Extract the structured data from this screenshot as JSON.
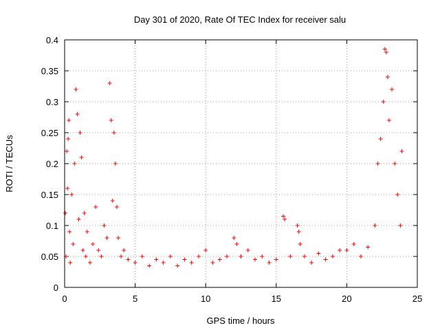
{
  "chart_data": {
    "type": "scatter",
    "title": "Day 301 of 2020, Rate Of TEC Index for receiver salu",
    "xlabel": "GPS time / hours",
    "ylabel": "ROTI / TECUs",
    "xlim": [
      0,
      25
    ],
    "ylim": [
      0,
      0.4
    ],
    "xticks": [
      0,
      5,
      10,
      15,
      20,
      25
    ],
    "yticks": [
      0,
      0.05,
      0.1,
      0.15,
      0.2,
      0.25,
      0.3,
      0.35,
      0.4
    ],
    "grid": true,
    "marker": "+",
    "color": "#ff0000",
    "series": [
      {
        "x": [
          0.05,
          0.1,
          0.15,
          0.2,
          0.25,
          0.3,
          0.35,
          0.4,
          0.5,
          0.6,
          0.7,
          0.8,
          0.9,
          1.0,
          1.1,
          1.2,
          1.3,
          1.4,
          1.5,
          1.6,
          1.8,
          2.0,
          2.2,
          2.4,
          2.6,
          2.8,
          3.0,
          3.2,
          3.3,
          3.4,
          3.5,
          3.6,
          3.7,
          3.8,
          4.0,
          4.2,
          4.5,
          5.0,
          5.5,
          6.0,
          6.5,
          7.0,
          7.5,
          8.0,
          8.5,
          9.0,
          9.5,
          10.0,
          10.5,
          11.0,
          11.5,
          12.0,
          12.2,
          12.5,
          13.0,
          13.5,
          14.0,
          14.5,
          15.0,
          15.5,
          15.6,
          16.0,
          16.5,
          16.6,
          16.7,
          17.0,
          17.5,
          18.0,
          18.5,
          19.0,
          19.5,
          20.0,
          20.5,
          21.0,
          21.5,
          22.0,
          22.2,
          22.4,
          22.6,
          22.7,
          22.8,
          22.9,
          23.0,
          23.2,
          23.4,
          23.6,
          23.8,
          23.9
        ],
        "y": [
          0.12,
          0.05,
          0.22,
          0.16,
          0.24,
          0.27,
          0.09,
          0.04,
          0.15,
          0.07,
          0.2,
          0.32,
          0.28,
          0.11,
          0.25,
          0.21,
          0.06,
          0.12,
          0.05,
          0.09,
          0.04,
          0.07,
          0.13,
          0.06,
          0.05,
          0.1,
          0.08,
          0.33,
          0.27,
          0.14,
          0.25,
          0.2,
          0.13,
          0.08,
          0.05,
          0.06,
          0.045,
          0.04,
          0.05,
          0.035,
          0.045,
          0.04,
          0.05,
          0.035,
          0.045,
          0.04,
          0.05,
          0.06,
          0.04,
          0.045,
          0.05,
          0.08,
          0.07,
          0.05,
          0.06,
          0.045,
          0.05,
          0.04,
          0.045,
          0.115,
          0.11,
          0.05,
          0.1,
          0.09,
          0.07,
          0.05,
          0.04,
          0.055,
          0.045,
          0.05,
          0.06,
          0.06,
          0.07,
          0.05,
          0.065,
          0.1,
          0.2,
          0.24,
          0.3,
          0.385,
          0.38,
          0.34,
          0.27,
          0.32,
          0.2,
          0.15,
          0.1,
          0.22
        ]
      }
    ]
  }
}
